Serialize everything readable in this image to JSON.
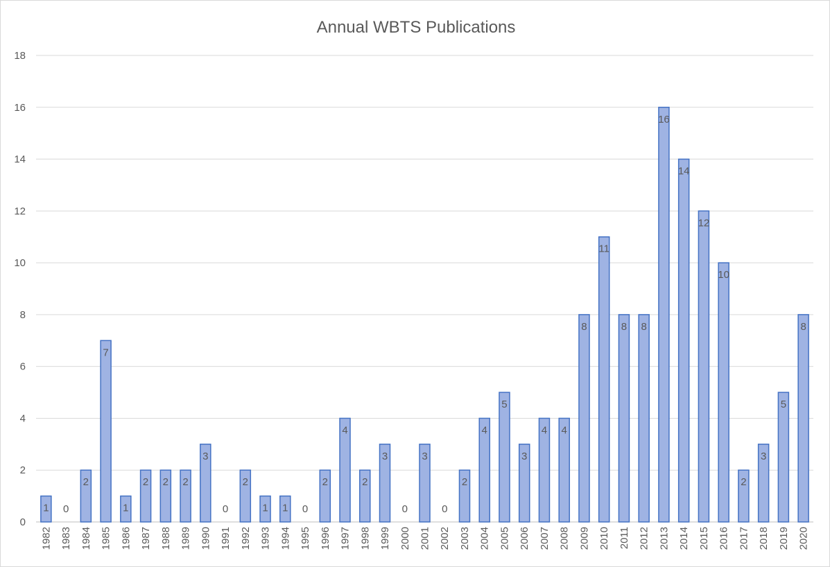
{
  "chart_data": {
    "type": "bar",
    "title": "Annual WBTS Publications",
    "xlabel": "",
    "ylabel": "",
    "categories": [
      "1982",
      "1983",
      "1984",
      "1985",
      "1986",
      "1987",
      "1988",
      "1989",
      "1990",
      "1991",
      "1992",
      "1993",
      "1994",
      "1995",
      "1996",
      "1997",
      "1998",
      "1999",
      "2000",
      "2001",
      "2002",
      "2003",
      "2004",
      "2005",
      "2006",
      "2007",
      "2008",
      "2009",
      "2010",
      "2011",
      "2012",
      "2013",
      "2014",
      "2015",
      "2016",
      "2017",
      "2018",
      "2019",
      "2020"
    ],
    "values": [
      1,
      0,
      2,
      7,
      1,
      2,
      2,
      2,
      3,
      0,
      2,
      1,
      1,
      0,
      2,
      4,
      2,
      3,
      0,
      3,
      0,
      2,
      4,
      5,
      3,
      4,
      4,
      8,
      11,
      8,
      8,
      16,
      14,
      12,
      10,
      2,
      3,
      5,
      8
    ],
    "ylim": [
      0,
      18
    ],
    "yticks": [
      0,
      2,
      4,
      6,
      8,
      10,
      12,
      14,
      16,
      18
    ],
    "grid": true,
    "legend": "none",
    "colors": {
      "bar_fill": "#9fb3e3",
      "bar_stroke": "#4472c4",
      "text": "#595959",
      "grid": "#d9d9d9"
    }
  }
}
